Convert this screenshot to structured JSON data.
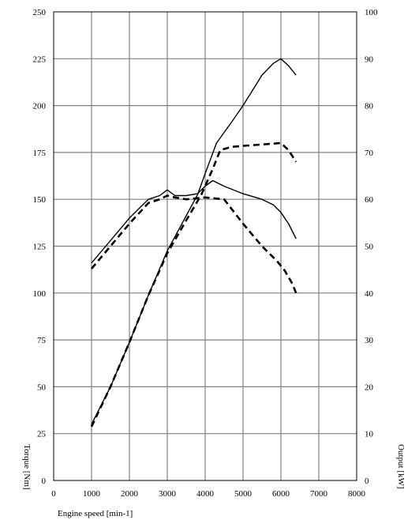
{
  "chart_data": {
    "type": "line",
    "title": "",
    "xlabel": "Engine speed [min-1]",
    "ylabel_left": "Torque [Nm]",
    "ylabel_right": "Output [kW]",
    "xlim": [
      0,
      8000
    ],
    "ylim_left": [
      0,
      250
    ],
    "ylim_right": [
      0,
      100
    ],
    "x_ticks": [
      "0",
      "1000",
      "2000",
      "3000",
      "4000",
      "5000",
      "6000",
      "7000",
      "8000"
    ],
    "y_ticks_left": [
      "0",
      "25",
      "50",
      "75",
      "100",
      "125",
      "150",
      "175",
      "200",
      "225",
      "250"
    ],
    "y_ticks_right": [
      "0",
      "10",
      "20",
      "30",
      "40",
      "50",
      "60",
      "70",
      "80",
      "90",
      "100"
    ],
    "grid": true,
    "legend": "none",
    "series": [
      {
        "axis": "left",
        "style": "solid",
        "x": [
          1000,
          1500,
          2000,
          2500,
          2800,
          3000,
          3200,
          3500,
          3800,
          4000,
          4200,
          4500,
          5000,
          5500,
          5800,
          6000,
          6200,
          6400
        ],
        "values": [
          116,
          128,
          140,
          150,
          152,
          155,
          152,
          152,
          153,
          157,
          160,
          157,
          153,
          150,
          147,
          143,
          137,
          129
        ]
      },
      {
        "axis": "left",
        "style": "dashed",
        "x": [
          1000,
          1500,
          2000,
          2500,
          2800,
          3000,
          3200,
          3500,
          4000,
          4500,
          5000,
          5500,
          5900,
          6100,
          6300,
          6400
        ],
        "values": [
          113,
          125,
          137,
          148,
          150,
          152,
          151,
          150,
          151,
          150,
          137,
          125,
          117,
          112,
          105,
          100
        ]
      },
      {
        "axis": "right",
        "style": "solid",
        "x": [
          1000,
          1500,
          2000,
          2500,
          3000,
          3500,
          3800,
          4000,
          4300,
          4700,
          5000,
          5500,
          5800,
          6000,
          6200,
          6400
        ],
        "values": [
          12,
          20,
          29.5,
          39.5,
          49,
          56.5,
          61,
          65.5,
          72,
          76.5,
          80,
          86.5,
          89,
          90,
          88.5,
          86.5
        ]
      },
      {
        "axis": "right",
        "style": "dashed",
        "x": [
          1000,
          1500,
          2000,
          2500,
          3000,
          3500,
          3900,
          4200,
          4400,
          4700,
          5000,
          5500,
          6000,
          6200,
          6400
        ],
        "values": [
          11.5,
          20,
          29.5,
          39.5,
          48.5,
          55.5,
          61,
          66.5,
          70.5,
          71.2,
          71.4,
          71.7,
          72,
          70.5,
          68
        ]
      }
    ]
  }
}
